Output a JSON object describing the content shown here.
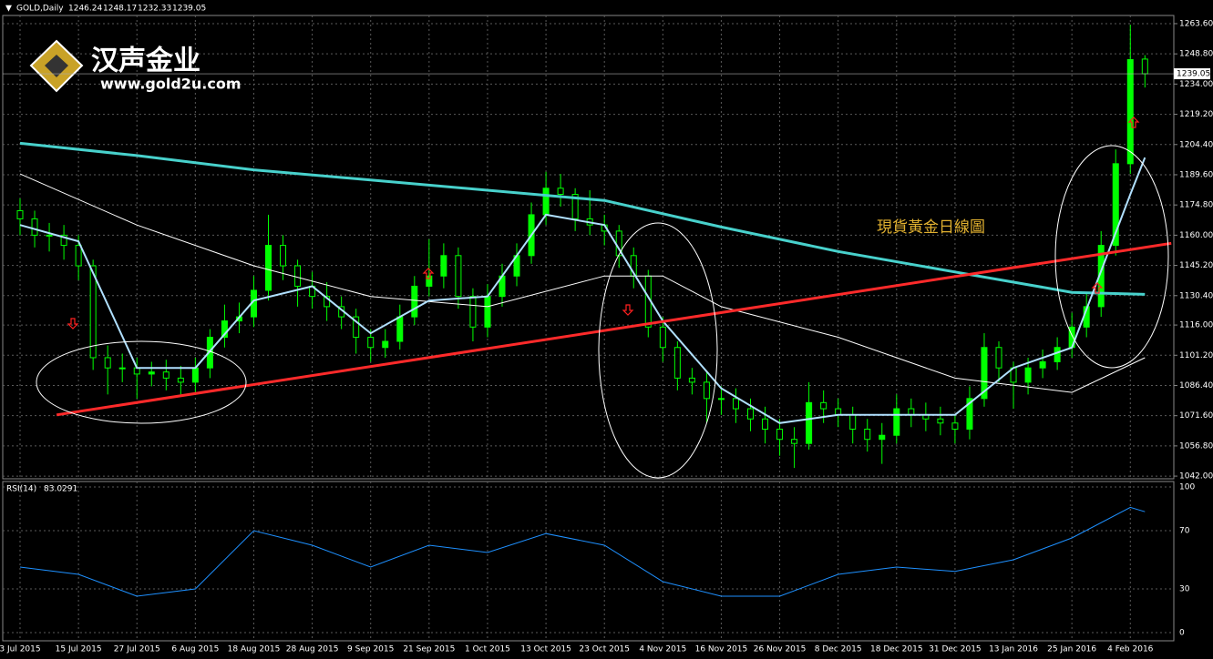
{
  "logo": {
    "name": "汉声金业",
    "url": "www.gold2u.com"
  },
  "chart_data": {
    "type": "candlestick",
    "title": "GOLD,Daily",
    "annotation": "現貨黃金日線圖",
    "color": "#00ff00",
    "grid": true,
    "categories": [
      "3 Jul 2015",
      null,
      null,
      null,
      "15 Jul 2015",
      null,
      null,
      null,
      "27 Jul 2015",
      null,
      null,
      null,
      "6 Aug 2015",
      null,
      null,
      null,
      "18 Aug 2015",
      null,
      null,
      null,
      "28 Aug 2015",
      null,
      null,
      null,
      "9 Sep 2015",
      null,
      null,
      null,
      "21 Sep 2015",
      null,
      null,
      null,
      "1 Oct 2015",
      null,
      null,
      null,
      "13 Oct 2015",
      null,
      null,
      null,
      "23 Oct 2015",
      null,
      null,
      null,
      "4 Nov 2015",
      null,
      null,
      null,
      "16 Nov 2015",
      null,
      null,
      null,
      "26 Nov 2015",
      null,
      null,
      null,
      "8 Dec 2015",
      null,
      null,
      null,
      "18 Dec 2015",
      null,
      null,
      null,
      "31 Dec 2015",
      null,
      null,
      null,
      "13 Jan 2016",
      null,
      null,
      null,
      "25 Jan 2016",
      null,
      null,
      null,
      "4 Feb 2016",
      null
    ],
    "open": [
      1172,
      1168,
      1160,
      1160,
      1155,
      1145,
      1100,
      1095,
      1095,
      1092,
      1093,
      1090,
      1088,
      1095,
      1110,
      1118,
      1120,
      1133,
      1155,
      1145,
      1135,
      1130,
      1125,
      1120,
      1110,
      1105,
      1108,
      1120,
      1135,
      1140,
      1150,
      1130,
      1115,
      1130,
      1140,
      1150,
      1170,
      1183,
      1180,
      1168,
      1165,
      1162,
      1150,
      1140,
      1115,
      1105,
      1090,
      1088,
      1080,
      1080,
      1075,
      1070,
      1065,
      1060,
      1058,
      1078,
      1075,
      1072,
      1065,
      1060,
      1062,
      1075,
      1072,
      1070,
      1068,
      1065,
      1080,
      1105,
      1095,
      1088,
      1095,
      1098,
      1105,
      1115,
      1125,
      1155,
      1195,
      1246.24
    ],
    "high": [
      1178,
      1172,
      1166,
      1165,
      1160,
      1148,
      1106,
      1102,
      1100,
      1098,
      1099,
      1096,
      1100,
      1114,
      1126,
      1127,
      1140,
      1170,
      1160,
      1148,
      1142,
      1137,
      1130,
      1124,
      1114,
      1114,
      1126,
      1140,
      1158,
      1156,
      1154,
      1134,
      1136,
      1146,
      1156,
      1176,
      1191,
      1190,
      1183,
      1182,
      1170,
      1165,
      1154,
      1143,
      1120,
      1108,
      1095,
      1093,
      1086,
      1085,
      1080,
      1076,
      1070,
      1066,
      1088,
      1084,
      1080,
      1076,
      1070,
      1068,
      1082,
      1080,
      1078,
      1076,
      1072,
      1086,
      1112,
      1108,
      1098,
      1100,
      1104,
      1110,
      1122,
      1132,
      1162,
      1202,
      1263,
      1248.17
    ],
    "low": [
      1160,
      1154,
      1152,
      1148,
      1138,
      1094,
      1082,
      1088,
      1080,
      1086,
      1084,
      1082,
      1083,
      1090,
      1105,
      1112,
      1115,
      1128,
      1138,
      1125,
      1124,
      1118,
      1114,
      1102,
      1098,
      1100,
      1104,
      1116,
      1130,
      1134,
      1124,
      1108,
      1110,
      1125,
      1135,
      1146,
      1165,
      1174,
      1162,
      1160,
      1155,
      1144,
      1134,
      1110,
      1098,
      1084,
      1082,
      1068,
      1072,
      1068,
      1064,
      1058,
      1052,
      1046,
      1055,
      1068,
      1066,
      1058,
      1054,
      1048,
      1058,
      1066,
      1064,
      1062,
      1058,
      1060,
      1076,
      1088,
      1075,
      1082,
      1090,
      1094,
      1100,
      1110,
      1120,
      1150,
      1190,
      1232.33
    ],
    "close": [
      1168,
      1160,
      1160,
      1155,
      1145,
      1100,
      1095,
      1095,
      1092,
      1093,
      1090,
      1088,
      1095,
      1110,
      1118,
      1120,
      1133,
      1155,
      1145,
      1135,
      1130,
      1125,
      1120,
      1110,
      1105,
      1108,
      1120,
      1135,
      1140,
      1150,
      1130,
      1115,
      1130,
      1140,
      1150,
      1170,
      1183,
      1180,
      1168,
      1165,
      1162,
      1150,
      1140,
      1115,
      1105,
      1090,
      1088,
      1080,
      1080,
      1075,
      1070,
      1065,
      1060,
      1058,
      1078,
      1075,
      1072,
      1065,
      1060,
      1062,
      1075,
      1072,
      1070,
      1068,
      1065,
      1080,
      1105,
      1095,
      1088,
      1095,
      1098,
      1105,
      1115,
      1125,
      1155,
      1195,
      1246,
      1239.05
    ],
    "ylim": [
      1040.7,
      1267.6
    ],
    "yticks": [
      {
        "value": 1263.6,
        "label": "1263.60"
      },
      {
        "value": 1248.8,
        "label": "1248.80"
      },
      {
        "value": 1234,
        "label": "1234.00"
      },
      {
        "value": 1219.2,
        "label": "1219.20"
      },
      {
        "value": 1204.4,
        "label": "1204.40"
      },
      {
        "value": 1189.6,
        "label": "1189.60"
      },
      {
        "value": 1174.8,
        "label": "1174.80"
      },
      {
        "value": 1160,
        "label": "1160.00"
      },
      {
        "value": 1145.2,
        "label": "1145.20"
      },
      {
        "value": 1130.4,
        "label": "1130.40"
      },
      {
        "value": 1116,
        "label": "1116.00"
      },
      {
        "value": 1101.2,
        "label": "1101.20"
      },
      {
        "value": 1086.4,
        "label": "1086.40"
      },
      {
        "value": 1071.6,
        "label": "1071.60"
      },
      {
        "value": 1056.8,
        "label": "1056.80"
      },
      {
        "value": 1042,
        "label": "1042.00"
      }
    ],
    "overlays": [
      {
        "color": "#48d1cc",
        "width": 3,
        "x": [
          0,
          8,
          16,
          24,
          32,
          40,
          48,
          56,
          64,
          72,
          77
        ],
        "values": [
          1205,
          1199,
          1192,
          1187,
          1182,
          1177,
          1164,
          1152,
          1142,
          1132,
          1131
        ]
      },
      {
        "color": "#ffffff",
        "width": 1,
        "x": [
          0,
          8,
          16,
          24,
          32,
          40,
          44,
          48,
          56,
          64,
          72,
          77
        ],
        "values": [
          1190,
          1165,
          1145,
          1130,
          1125,
          1140,
          1140,
          1125,
          1110,
          1090,
          1083,
          1100
        ]
      },
      {
        "color": "#b0e0ff",
        "width": 2,
        "x": [
          0,
          4,
          8,
          12,
          16,
          20,
          24,
          28,
          32,
          36,
          40,
          44,
          48,
          52,
          56,
          60,
          64,
          68,
          72,
          76,
          77
        ],
        "values": [
          1165,
          1157,
          1095,
          1095,
          1128,
          1135,
          1112,
          1128,
          1130,
          1170,
          1165,
          1118,
          1085,
          1068,
          1072,
          1072,
          1072,
          1095,
          1105,
          1180,
          1198
        ]
      },
      {
        "color": "#ff2a2a",
        "width": 3,
        "x": [
          2.5,
          78.8
        ],
        "values": [
          1072,
          1156
        ]
      }
    ],
    "rsi": {
      "title": "RSI(14)",
      "color": "#1e90ff",
      "ylim": [
        0,
        100
      ],
      "yticks": [
        100,
        70,
        30,
        0
      ],
      "x": [
        0,
        4,
        8,
        12,
        16,
        20,
        24,
        28,
        32,
        36,
        40,
        44,
        48,
        52,
        56,
        60,
        64,
        68,
        72,
        76,
        77
      ],
      "values": [
        45,
        40,
        25,
        30,
        70,
        60,
        45,
        60,
        55,
        68,
        60,
        35,
        25,
        25,
        40,
        45,
        42,
        50,
        65,
        86,
        83.0291
      ]
    }
  }
}
